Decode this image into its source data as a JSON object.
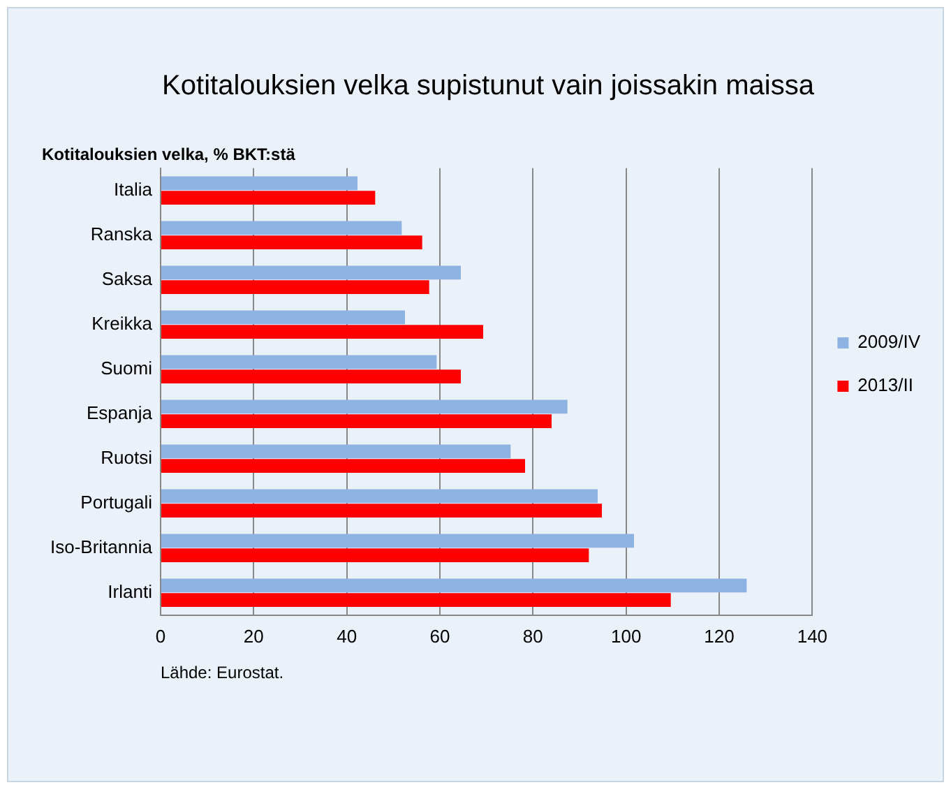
{
  "chart_data": {
    "type": "bar",
    "orientation": "horizontal",
    "title": "Kotitalouksien velka supistunut vain joissakin maissa",
    "subtitle": "Kotitalouksien velka, % BKT:stä",
    "categories": [
      "Italia",
      "Ranska",
      "Saksa",
      "Kreikka",
      "Suomi",
      "Espanja",
      "Ruotsi",
      "Portugali",
      "Iso-Britannia",
      "Irlanti"
    ],
    "series": [
      {
        "name": "2009/IV",
        "color": "#8db3e2",
        "values": [
          42.3,
          51.8,
          64.5,
          52.5,
          59.3,
          87.4,
          75.2,
          93.9,
          101.7,
          125.9
        ]
      },
      {
        "name": "2013/II",
        "color": "#ff0000",
        "values": [
          46.1,
          56.2,
          57.7,
          69.3,
          64.5,
          84.0,
          78.3,
          94.8,
          92.0,
          109.6
        ]
      }
    ],
    "xlim": [
      0,
      140
    ],
    "xticks": [
      0,
      20,
      40,
      60,
      80,
      100,
      120,
      140
    ],
    "grid": "x",
    "legend": "right",
    "annotations": [
      "Lähde: Eurostat."
    ]
  }
}
